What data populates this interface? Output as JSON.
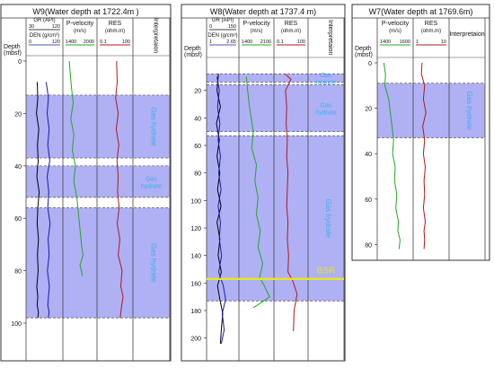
{
  "chart_data": [
    {
      "type": "line",
      "title": "W9(Water depth at 1722.4m )",
      "depth_label": [
        "Depth",
        "(mbsf)"
      ],
      "ylim": [
        0,
        100
      ],
      "y_ticks": [
        0,
        20,
        40,
        60,
        80,
        100
      ],
      "columns": [
        {
          "name": "GR-DEN",
          "labels": [
            {
              "text": "GR (API)",
              "color": "#000000",
              "min": "30",
              "max": "120"
            },
            {
              "text": "DEN (g/cm³)",
              "color": "#000000",
              "min": "0",
              "max": "120"
            }
          ]
        },
        {
          "name": "P-velocity",
          "labels": [
            {
              "text": "P-velocity",
              "color": "#000000",
              "unit": "(m/s)",
              "min": "1400",
              "max": "2000"
            }
          ]
        },
        {
          "name": "RES",
          "labels": [
            {
              "text": "RES",
              "color": "#000000",
              "unit": "(ohm.m)",
              "min": "0.1",
              "max": "100"
            }
          ]
        },
        {
          "name": "Interpretaion",
          "labels": [
            {
              "text": "Interpretaion",
              "color": "#000000"
            }
          ]
        }
      ],
      "zones": [
        {
          "top": 13,
          "bottom": 37,
          "label": "Gas hydrate",
          "orientation": "vertical"
        },
        {
          "top": 40,
          "bottom": 52,
          "label": "Gas hydrate",
          "orientation": "horizontal"
        },
        {
          "top": 56,
          "bottom": 98,
          "label": "Gas hydrate",
          "orientation": "vertical"
        }
      ],
      "series": [
        {
          "name": "GR",
          "color": "#000000",
          "x": [
            0.28,
            0.3,
            0.26,
            0.33,
            0.29,
            0.31,
            0.27,
            0.34,
            0.3,
            0.28,
            0.32,
            0.29,
            0.31,
            0.27,
            0.3,
            0.28,
            0.32,
            0.3
          ],
          "y": [
            8,
            14,
            20,
            26,
            32,
            38,
            44,
            50,
            56,
            62,
            68,
            74,
            80,
            86,
            90,
            93,
            96,
            98
          ]
        },
        {
          "name": "DEN",
          "color": "#1a1aa6",
          "x": [
            0.55,
            0.62,
            0.58,
            0.64,
            0.6,
            0.66,
            0.58,
            0.63,
            0.6,
            0.67,
            0.61,
            0.64,
            0.59,
            0.65,
            0.62,
            0.6,
            0.64,
            0.61
          ],
          "y": [
            8,
            14,
            20,
            26,
            32,
            38,
            44,
            50,
            56,
            62,
            68,
            74,
            80,
            86,
            90,
            93,
            96,
            98
          ]
        },
        {
          "name": "P-velocity",
          "color": "#22a822",
          "x": [
            0.15,
            0.22,
            0.28,
            0.2,
            0.3,
            0.25,
            0.35,
            0.3,
            0.4,
            0.45,
            0.5,
            0.55,
            0.6,
            0.5,
            0.55,
            0.58
          ],
          "y": [
            0,
            10,
            16,
            22,
            28,
            34,
            40,
            46,
            52,
            58,
            64,
            70,
            74,
            78,
            80,
            82
          ]
        },
        {
          "name": "RES",
          "color": "#b01818",
          "x": [
            0.55,
            0.57,
            0.52,
            0.6,
            0.54,
            0.62,
            0.56,
            0.6,
            0.58,
            0.63,
            0.57,
            0.65,
            0.6,
            0.72,
            0.68,
            0.75,
            0.7,
            0.66
          ],
          "y": [
            0,
            8,
            14,
            20,
            26,
            32,
            38,
            44,
            50,
            56,
            62,
            68,
            74,
            80,
            86,
            90,
            94,
            98
          ]
        }
      ]
    },
    {
      "type": "line",
      "title": "W8(Water depth at 1737.4 m)",
      "depth_label": [
        "Depth",
        "(mbsf)"
      ],
      "ylim": [
        0,
        210
      ],
      "y_ticks": [
        20,
        40,
        60,
        80,
        100,
        120,
        140,
        160,
        180,
        200
      ],
      "columns": [
        {
          "name": "GR-DEN",
          "labels": [
            {
              "text": "GR (API)",
              "color": "#000000",
              "min": "0",
              "max": "150"
            },
            {
              "text": "DEN (g/cm³)",
              "color": "#000000",
              "min": "1",
              "max": "2.65"
            }
          ]
        },
        {
          "name": "P-velocity",
          "labels": [
            {
              "text": "P-velocity",
              "color": "#000000",
              "unit": "(m/s)",
              "min": "1400",
              "max": "2100"
            }
          ]
        },
        {
          "name": "RES",
          "labels": [
            {
              "text": "RES",
              "color": "#000000",
              "unit": "(ohm.m)",
              "min": "0.1",
              "max": "100"
            }
          ]
        },
        {
          "name": "Interpretaion",
          "labels": [
            {
              "text": "Interpretaion",
              "color": "#000000"
            }
          ]
        }
      ],
      "zones": [
        {
          "top": 8,
          "bottom": 14,
          "label": "Gas hydrate",
          "orientation": "horizontal"
        },
        {
          "top": 16,
          "bottom": 50,
          "label": "Gas hydrate",
          "orientation": "horizontal"
        },
        {
          "top": 53,
          "bottom": 173,
          "label": "Gas hydrate",
          "orientation": "vertical"
        }
      ],
      "annotations": [
        {
          "text": "BSR",
          "depth": 157,
          "color": "#e3e52a"
        }
      ],
      "series": [
        {
          "name": "GR",
          "color": "#000000",
          "x": [
            0.35,
            0.3,
            0.42,
            0.28,
            0.38,
            0.3,
            0.4,
            0.32,
            0.44,
            0.3,
            0.4,
            0.34,
            0.45,
            0.32,
            0.4,
            0.5,
            0.45,
            0.42
          ],
          "y": [
            8,
            20,
            32,
            44,
            56,
            68,
            80,
            92,
            104,
            116,
            128,
            140,
            152,
            162,
            172,
            182,
            194,
            204
          ]
        },
        {
          "name": "DEN",
          "color": "#1a1aa6",
          "x": [
            0.3,
            0.38,
            0.32,
            0.4,
            0.34,
            0.42,
            0.36,
            0.44,
            0.34,
            0.42,
            0.38,
            0.46,
            0.36,
            0.52,
            0.6,
            0.48,
            0.55,
            0.45
          ],
          "y": [
            10,
            20,
            32,
            44,
            56,
            68,
            80,
            92,
            104,
            116,
            128,
            140,
            152,
            162,
            172,
            182,
            194,
            204
          ]
        },
        {
          "name": "P-velocity",
          "color": "#22a822",
          "x": [
            0.18,
            0.22,
            0.28,
            0.4,
            0.35,
            0.5,
            0.45,
            0.55,
            0.5,
            0.62,
            0.55,
            0.7,
            0.6,
            0.75,
            0.92,
            0.6,
            0.4
          ],
          "y": [
            10,
            20,
            32,
            50,
            62,
            74,
            86,
            98,
            110,
            122,
            134,
            146,
            156,
            162,
            170,
            175,
            178
          ]
        },
        {
          "name": "RES",
          "color": "#b01818",
          "x": [
            0.3,
            0.5,
            0.32,
            0.36,
            0.34,
            0.38,
            0.36,
            0.4,
            0.38,
            0.36,
            0.4,
            0.38,
            0.42,
            0.4,
            0.55,
            0.7,
            0.6,
            0.58
          ],
          "y": [
            8,
            12,
            20,
            32,
            44,
            56,
            68,
            80,
            92,
            104,
            116,
            128,
            140,
            152,
            158,
            168,
            180,
            195
          ]
        }
      ]
    },
    {
      "type": "line",
      "title": "W7(Water depth at 1769.6m)",
      "depth_label": [
        "Depth",
        "(mbsf)"
      ],
      "ylim": [
        0,
        85
      ],
      "y_ticks": [
        0,
        20,
        40,
        60,
        80
      ],
      "columns": [
        {
          "name": "P-velocity",
          "labels": [
            {
              "text": "P-velocity",
              "color": "#000000",
              "unit": "(m/s)",
              "min": "1400",
              "max": "1600"
            }
          ]
        },
        {
          "name": "RES",
          "labels": [
            {
              "text": "RES",
              "color": "#000000",
              "unit": "(ohm.m)",
              "min": "1",
              "max": "10"
            }
          ]
        },
        {
          "name": "Interpretaion",
          "labels": [
            {
              "text": "Interpretaion",
              "color": "#000000"
            }
          ]
        }
      ],
      "zones": [
        {
          "top": 9,
          "bottom": 33,
          "label": "Gas hydrate",
          "orientation": "vertical"
        }
      ],
      "series": [
        {
          "name": "P-velocity",
          "color": "#22a822",
          "x": [
            0.15,
            0.2,
            0.18,
            0.3,
            0.35,
            0.4,
            0.45,
            0.42,
            0.5,
            0.48,
            0.55,
            0.52,
            0.6,
            0.58,
            0.65,
            0.62
          ],
          "y": [
            0,
            5,
            10,
            16,
            22,
            28,
            34,
            40,
            46,
            52,
            58,
            64,
            70,
            74,
            78,
            82
          ]
        },
        {
          "name": "RES",
          "color": "#b01818",
          "x": [
            0.22,
            0.2,
            0.3,
            0.26,
            0.34,
            0.24,
            0.3,
            0.26,
            0.32,
            0.28,
            0.3,
            0.26,
            0.32,
            0.28,
            0.3,
            0.28
          ],
          "y": [
            0,
            5,
            10,
            16,
            22,
            28,
            34,
            40,
            46,
            52,
            58,
            64,
            70,
            74,
            78,
            82
          ]
        }
      ]
    }
  ]
}
